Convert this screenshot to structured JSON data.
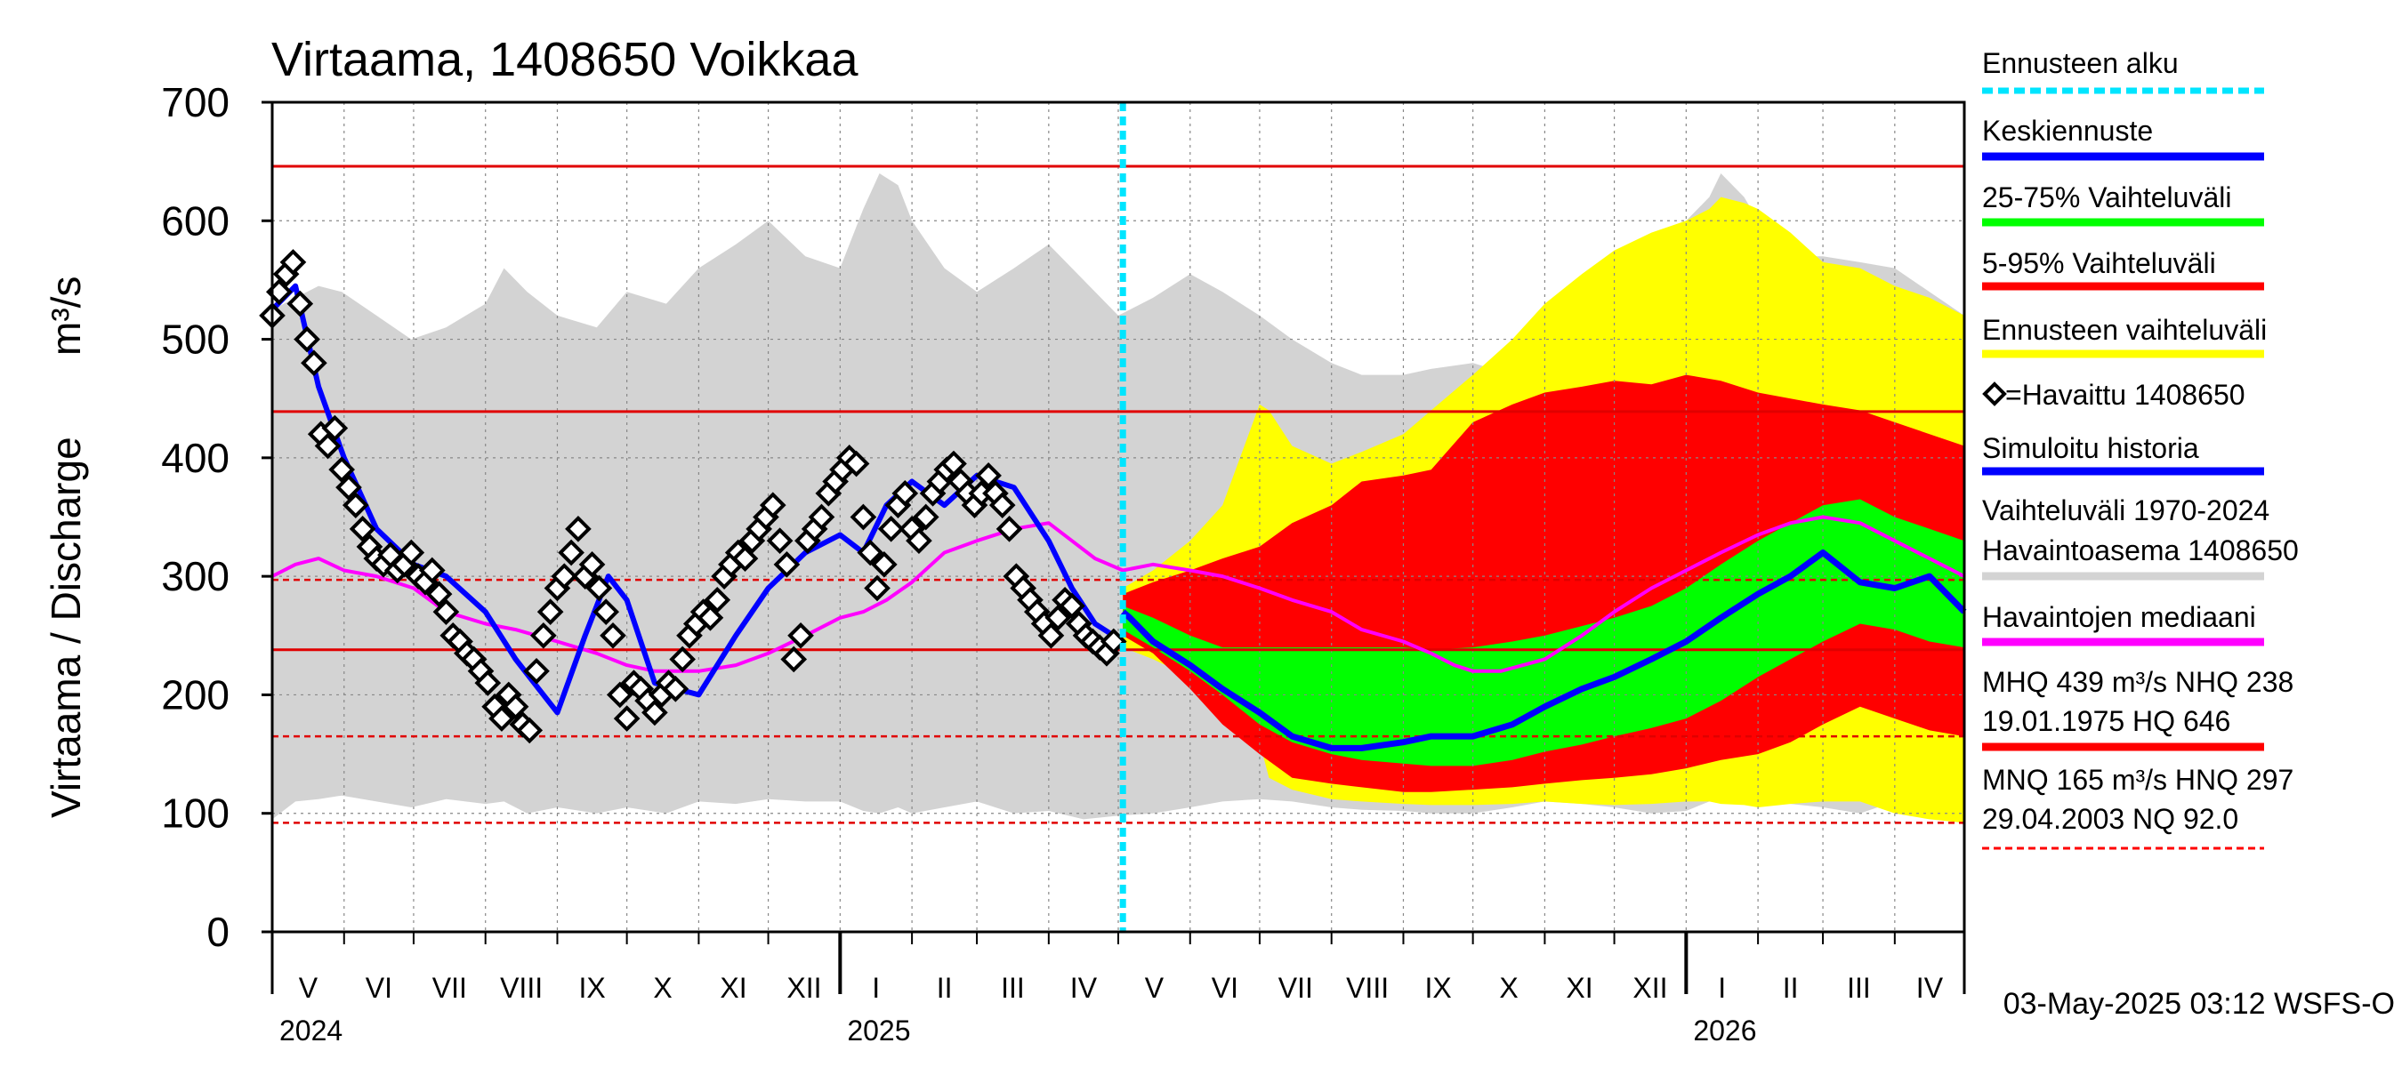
{
  "chart_data": {
    "type": "line",
    "title": "Virtaama, 1408650 Voikkaa",
    "ylabel": "Virtaama / Discharge",
    "yunit": "m³/s",
    "ylim": [
      0,
      700
    ],
    "yticks": [
      0,
      100,
      200,
      300,
      400,
      500,
      600,
      700
    ],
    "xlim_days": [
      0,
      730
    ],
    "months": [
      {
        "label": "V",
        "day": 0
      },
      {
        "label": "VI",
        "day": 31
      },
      {
        "label": "VII",
        "day": 61
      },
      {
        "label": "VIII",
        "day": 92
      },
      {
        "label": "IX",
        "day": 123
      },
      {
        "label": "X",
        "day": 153
      },
      {
        "label": "XI",
        "day": 184
      },
      {
        "label": "XII",
        "day": 214
      },
      {
        "label": "I",
        "day": 245
      },
      {
        "label": "II",
        "day": 276
      },
      {
        "label": "III",
        "day": 304
      },
      {
        "label": "IV",
        "day": 335
      },
      {
        "label": "V",
        "day": 365
      },
      {
        "label": "VI",
        "day": 396
      },
      {
        "label": "VII",
        "day": 426
      },
      {
        "label": "VIII",
        "day": 457
      },
      {
        "label": "IX",
        "day": 488
      },
      {
        "label": "X",
        "day": 518
      },
      {
        "label": "XI",
        "day": 549
      },
      {
        "label": "XII",
        "day": 579
      },
      {
        "label": "I",
        "day": 610
      },
      {
        "label": "II",
        "day": 641
      },
      {
        "label": "III",
        "day": 669
      },
      {
        "label": "IV",
        "day": 700
      }
    ],
    "years": [
      {
        "label": "2024",
        "day": 0
      },
      {
        "label": "2025",
        "day": 245
      },
      {
        "label": "2026",
        "day": 610
      }
    ],
    "forecast_start_day": 367,
    "reference_lines": [
      {
        "name": "HQ",
        "value": 646,
        "style": "solid"
      },
      {
        "name": "MHQ",
        "value": 439,
        "style": "solid"
      },
      {
        "name": "HNQ",
        "value": 297,
        "style": "dashed"
      },
      {
        "name": "NHQ",
        "value": 238,
        "style": "solid"
      },
      {
        "name": "MNQ",
        "value": 165,
        "style": "dashed"
      },
      {
        "name": "NQ",
        "value": 92,
        "style": "dashed"
      }
    ],
    "history_band": {
      "name": "Vaihteluväli 1970-2024 Havaintoasema 1408650",
      "x": [
        0,
        10,
        20,
        30,
        45,
        60,
        75,
        92,
        100,
        110,
        123,
        140,
        153,
        170,
        184,
        200,
        214,
        230,
        245,
        255,
        262,
        270,
        276,
        290,
        304,
        320,
        335,
        350,
        365,
        380,
        396,
        410,
        426,
        440,
        457,
        470,
        488,
        500,
        518,
        535,
        549,
        565,
        579,
        595,
        610,
        620,
        625,
        635,
        641,
        655,
        669,
        685,
        700,
        715,
        730
      ],
      "low": [
        95,
        110,
        112,
        115,
        110,
        105,
        112,
        108,
        110,
        100,
        105,
        100,
        105,
        100,
        110,
        108,
        112,
        110,
        110,
        102,
        100,
        105,
        100,
        105,
        110,
        100,
        102,
        95,
        98,
        100,
        105,
        110,
        112,
        110,
        105,
        103,
        102,
        100,
        100,
        105,
        110,
        108,
        105,
        100,
        102,
        110,
        115,
        112,
        110,
        108,
        105,
        100,
        110,
        105,
        100
      ],
      "high": [
        525,
        535,
        545,
        540,
        520,
        500,
        510,
        530,
        560,
        540,
        520,
        510,
        540,
        530,
        560,
        580,
        600,
        570,
        560,
        610,
        640,
        630,
        600,
        560,
        540,
        560,
        580,
        550,
        520,
        535,
        555,
        540,
        520,
        500,
        480,
        470,
        470,
        475,
        480,
        470,
        490,
        520,
        550,
        580,
        600,
        620,
        640,
        620,
        600,
        570,
        570,
        565,
        560,
        540,
        520
      ]
    },
    "forecast_bands": [
      {
        "name": "Ennusteen vaihteluväli",
        "color": "#ffff00",
        "x": [
          367,
          380,
          396,
          410,
          426,
          430,
          440,
          457,
          470,
          488,
          500,
          518,
          535,
          549,
          565,
          579,
          595,
          610,
          620,
          625,
          635,
          641,
          655,
          669,
          685,
          700,
          715,
          730
        ],
        "low": [
          240,
          230,
          215,
          190,
          160,
          130,
          120,
          112,
          110,
          108,
          107,
          107,
          108,
          110,
          108,
          107,
          108,
          110,
          110,
          108,
          107,
          105,
          108,
          110,
          110,
          100,
          95,
          92
        ],
        "high": [
          290,
          305,
          330,
          360,
          445,
          440,
          410,
          395,
          405,
          420,
          440,
          470,
          500,
          530,
          555,
          575,
          590,
          600,
          610,
          620,
          615,
          610,
          590,
          565,
          560,
          545,
          535,
          520
        ]
      },
      {
        "name": "5-95% Vaihteluväli",
        "color": "#ff0000",
        "x": [
          367,
          380,
          396,
          410,
          426,
          440,
          457,
          470,
          488,
          500,
          518,
          535,
          549,
          565,
          579,
          595,
          610,
          625,
          641,
          655,
          669,
          685,
          700,
          715,
          730
        ],
        "low": [
          250,
          235,
          205,
          175,
          150,
          130,
          125,
          122,
          118,
          118,
          120,
          122,
          125,
          128,
          130,
          133,
          138,
          145,
          150,
          160,
          175,
          190,
          180,
          170,
          165
        ],
        "high": [
          285,
          295,
          305,
          315,
          325,
          345,
          360,
          380,
          385,
          390,
          430,
          445,
          455,
          460,
          465,
          462,
          470,
          465,
          455,
          450,
          445,
          440,
          430,
          420,
          410
        ]
      },
      {
        "name": "25-75% Vaihteluväli",
        "color": "#00ff00",
        "x": [
          367,
          380,
          396,
          410,
          426,
          440,
          457,
          470,
          488,
          500,
          518,
          535,
          549,
          565,
          579,
          595,
          610,
          625,
          641,
          655,
          669,
          685,
          700,
          715,
          730
        ],
        "low": [
          255,
          240,
          220,
          200,
          175,
          160,
          150,
          145,
          142,
          140,
          140,
          145,
          152,
          158,
          165,
          172,
          180,
          195,
          215,
          230,
          245,
          260,
          255,
          245,
          240
        ],
        "high": [
          275,
          265,
          250,
          240,
          240,
          240,
          240,
          240,
          240,
          238,
          240,
          245,
          250,
          258,
          265,
          275,
          290,
          310,
          330,
          345,
          360,
          365,
          350,
          340,
          330
        ]
      }
    ],
    "series": [
      {
        "name": "Havaintojen mediaani",
        "color": "#ff00ff",
        "x": [
          0,
          10,
          20,
          31,
          45,
          61,
          75,
          92,
          105,
          123,
          140,
          153,
          165,
          184,
          200,
          214,
          230,
          245,
          255,
          265,
          276,
          290,
          304,
          320,
          335,
          345,
          355,
          367,
          380,
          396,
          410,
          426,
          440,
          457,
          470,
          488,
          500,
          510,
          518,
          530,
          549,
          565,
          579,
          595,
          610,
          625,
          641,
          655,
          669,
          685,
          700,
          715,
          730
        ],
        "y": [
          300,
          310,
          315,
          305,
          300,
          290,
          270,
          260,
          255,
          245,
          235,
          225,
          220,
          220,
          225,
          235,
          250,
          265,
          270,
          280,
          295,
          320,
          330,
          340,
          345,
          330,
          315,
          305,
          310,
          305,
          300,
          290,
          280,
          270,
          255,
          245,
          235,
          225,
          220,
          220,
          230,
          250,
          270,
          290,
          305,
          320,
          335,
          345,
          350,
          345,
          330,
          315,
          300
        ]
      },
      {
        "name": "Keskiennuste",
        "color": "#0000ff",
        "x": [
          367,
          370,
          380,
          396,
          410,
          426,
          440,
          457,
          470,
          488,
          500,
          518,
          535,
          549,
          565,
          579,
          595,
          610,
          625,
          641,
          655,
          669,
          685,
          700,
          715,
          730
        ],
        "y": [
          270,
          265,
          245,
          225,
          205,
          185,
          165,
          155,
          155,
          160,
          165,
          165,
          175,
          190,
          205,
          215,
          230,
          245,
          265,
          285,
          300,
          320,
          295,
          290,
          300,
          270
        ]
      },
      {
        "name": "Simuloitu historia",
        "color": "#0000ff",
        "x": [
          0,
          10,
          20,
          31,
          45,
          61,
          75,
          92,
          105,
          115,
          123,
          135,
          145,
          153,
          165,
          184,
          200,
          214,
          230,
          245,
          255,
          265,
          276,
          290,
          304,
          320,
          335,
          345,
          355,
          367
        ],
        "y": [
          525,
          545,
          460,
          400,
          340,
          310,
          300,
          270,
          230,
          205,
          185,
          250,
          300,
          280,
          210,
          200,
          250,
          290,
          320,
          335,
          320,
          360,
          380,
          360,
          385,
          375,
          330,
          290,
          260,
          245
        ]
      }
    ],
    "observed": {
      "name": "=Havaittu 1408650",
      "x": [
        0,
        3,
        6,
        9,
        12,
        15,
        18,
        21,
        24,
        27,
        30,
        33,
        36,
        39,
        42,
        45,
        48,
        51,
        54,
        57,
        60,
        63,
        66,
        69,
        72,
        75,
        78,
        81,
        84,
        87,
        90,
        93,
        96,
        99,
        102,
        105,
        108,
        111,
        114,
        117,
        120,
        123,
        126,
        129,
        132,
        135,
        138,
        141,
        144,
        147,
        150,
        153,
        156,
        159,
        162,
        165,
        168,
        171,
        174,
        177,
        180,
        183,
        186,
        189,
        192,
        195,
        198,
        201,
        204,
        207,
        210,
        213,
        216,
        219,
        222,
        225,
        228,
        231,
        234,
        237,
        240,
        243,
        246,
        249,
        252,
        255,
        258,
        261,
        264,
        267,
        270,
        273,
        276,
        279,
        282,
        285,
        288,
        291,
        294,
        297,
        300,
        303,
        306,
        309,
        312,
        315,
        318,
        321,
        324,
        327,
        330,
        333,
        336,
        339,
        342,
        345,
        348,
        351,
        354,
        357,
        360,
        363
      ],
      "y": [
        520,
        540,
        555,
        565,
        530,
        500,
        480,
        420,
        410,
        425,
        390,
        375,
        360,
        340,
        325,
        315,
        310,
        318,
        305,
        310,
        320,
        300,
        295,
        305,
        285,
        270,
        250,
        245,
        235,
        230,
        220,
        210,
        190,
        180,
        200,
        190,
        175,
        170,
        220,
        250,
        270,
        290,
        300,
        320,
        340,
        300,
        310,
        290,
        270,
        250,
        200,
        180,
        210,
        205,
        195,
        185,
        200,
        210,
        205,
        230,
        250,
        260,
        270,
        265,
        280,
        300,
        310,
        320,
        315,
        330,
        340,
        350,
        360,
        330,
        310,
        230,
        250,
        330,
        340,
        350,
        370,
        380,
        390,
        400,
        395,
        350,
        320,
        290,
        310,
        340,
        360,
        370,
        340,
        330,
        350,
        370,
        380,
        390,
        395,
        380,
        370,
        360,
        370,
        385,
        370,
        360,
        340,
        300,
        290,
        280,
        270,
        260,
        250,
        265,
        280,
        275,
        260,
        250,
        245,
        240,
        235,
        245
      ]
    },
    "legend": {
      "entries": [
        {
          "label": "Ennusteen alku",
          "color": "#00e5ff",
          "style": "dotted"
        },
        {
          "label": "Keskiennuste",
          "color": "#0000ff",
          "style": "solid"
        },
        {
          "label": "25-75% Vaihteluväli",
          "color": "#00ff00",
          "style": "solid"
        },
        {
          "label": "5-95% Vaihteluväli",
          "color": "#ff0000",
          "style": "solid"
        },
        {
          "label": "Ennusteen vaihteluväli",
          "color": "#ffff00",
          "style": "solid"
        },
        {
          "label": "=Havaittu 1408650",
          "color": "#000000",
          "style": "marker"
        },
        {
          "label": "Simuloitu historia",
          "color": "#0000ff",
          "style": "solid"
        },
        {
          "label": "Vaihteluväli 1970-2024",
          "label2": " Havaintoasema 1408650",
          "color": "#d3d3d3",
          "style": "solid"
        },
        {
          "label": "Havaintojen mediaani",
          "color": "#ff00ff",
          "style": "solid"
        },
        {
          "label": "MHQ  439 m³/s NHQ  238",
          "label2": "19.01.1975 HQ  646",
          "color": "#ff0000",
          "style": "solid"
        },
        {
          "label": "MNQ  165 m³/s HNQ  297",
          "label2": "29.04.2003 NQ 92.0",
          "color": "#ff0000",
          "style": "dashed"
        }
      ]
    },
    "footer": "03-May-2025 03:12 WSFS-O"
  }
}
